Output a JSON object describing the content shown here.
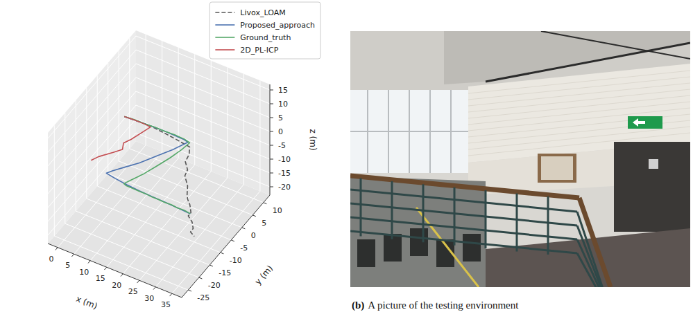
{
  "chart_data": {
    "type": "line3d",
    "xlabel": "x (m)",
    "ylabel": "y (m)",
    "zlabel": "z (m)",
    "xlim": [
      -3,
      38
    ],
    "ylim": [
      -28,
      13
    ],
    "zlim": [
      -23,
      17
    ],
    "xticks": [
      0,
      5,
      10,
      15,
      20,
      25,
      30,
      35
    ],
    "yticks": [
      -25,
      -20,
      -15,
      -10,
      -5,
      0,
      5,
      10
    ],
    "zticks": [
      -20,
      -15,
      -10,
      -5,
      0,
      5,
      10,
      15
    ],
    "grid": true,
    "legend": "upper right",
    "series": [
      {
        "name": "Livox_LOAM",
        "color": "#555555",
        "line_style": "dashed",
        "x": [
          2,
          6,
          10,
          14,
          18,
          22,
          22.5,
          22,
          23,
          22.5,
          24,
          24.5,
          25,
          26,
          27,
          26.5,
          28,
          29,
          28.5,
          30
        ],
        "y": [
          0,
          0.2,
          0.3,
          0.3,
          0.2,
          0,
          -1,
          -2,
          -2.5,
          -3,
          -4,
          -5,
          -5.5,
          -6,
          -7,
          -7.5,
          -8,
          -9,
          -9.5,
          -10
        ],
        "z": [
          0,
          0,
          0,
          -0.5,
          -1,
          -1.5,
          -3,
          -5,
          -7,
          -9,
          -11,
          -13,
          -14,
          -15,
          -16.5,
          -17.5,
          -18.5,
          -19.5,
          -20.5,
          -21
        ]
      },
      {
        "name": "Proposed_approach",
        "color": "#4c72b0",
        "line_style": "solid",
        "x": [
          2,
          5,
          8,
          11,
          14,
          17,
          20,
          21.5,
          19.5,
          17,
          14.5,
          12,
          10,
          9,
          12,
          16,
          20,
          24,
          28,
          32,
          36
        ],
        "y": [
          0,
          0.2,
          0.3,
          0.4,
          0.5,
          0.4,
          0.3,
          0,
          -4,
          -8,
          -12,
          -15,
          -17.5,
          -19,
          -19.5,
          -20,
          -20.3,
          -20.5,
          -20.6,
          -20.8,
          -21
        ],
        "z": [
          0,
          0,
          0,
          0,
          0,
          0,
          0,
          0,
          0,
          0,
          0,
          0,
          0,
          0,
          0,
          0,
          0,
          0,
          0,
          0,
          0
        ]
      },
      {
        "name": "Ground_truth",
        "color": "#55a868",
        "line_style": "solid",
        "x": [
          2,
          5,
          8,
          11,
          14,
          17,
          20,
          22,
          21.5,
          20.5,
          19,
          17.5,
          16,
          15,
          16,
          18,
          20,
          22,
          24,
          26,
          28,
          30,
          32,
          34,
          36
        ],
        "y": [
          0,
          0.3,
          0.2,
          0.5,
          0.4,
          0.6,
          0.5,
          0,
          -3,
          -7,
          -11,
          -15,
          -18,
          -20,
          -20.5,
          -20.3,
          -20.6,
          -20.4,
          -20.7,
          -20.5,
          -20.8,
          -20.6,
          -20.9,
          -20.7,
          -21
        ],
        "z": [
          0,
          0,
          0.1,
          0,
          0.1,
          0,
          0,
          0,
          0,
          0.1,
          0,
          0,
          0,
          0,
          0.2,
          -0.1,
          0.2,
          0,
          0.1,
          -0.1,
          0.1,
          0,
          0.1,
          0,
          0
        ]
      },
      {
        "name": "2D_PL-ICP",
        "color": "#c44e52",
        "line_style": "solid",
        "x": [
          2,
          5,
          8,
          10,
          9,
          8,
          7,
          8,
          6.5,
          4,
          3
        ],
        "y": [
          0,
          0.2,
          0.2,
          0,
          -3,
          -6,
          -8,
          -10,
          -12,
          -15,
          -17
        ],
        "z": [
          0,
          0,
          0,
          0,
          0,
          0,
          0,
          0,
          0,
          0,
          0
        ]
      }
    ]
  },
  "photo": {
    "caption": {
      "label": "(b)",
      "text": "A picture of the testing environment"
    }
  }
}
